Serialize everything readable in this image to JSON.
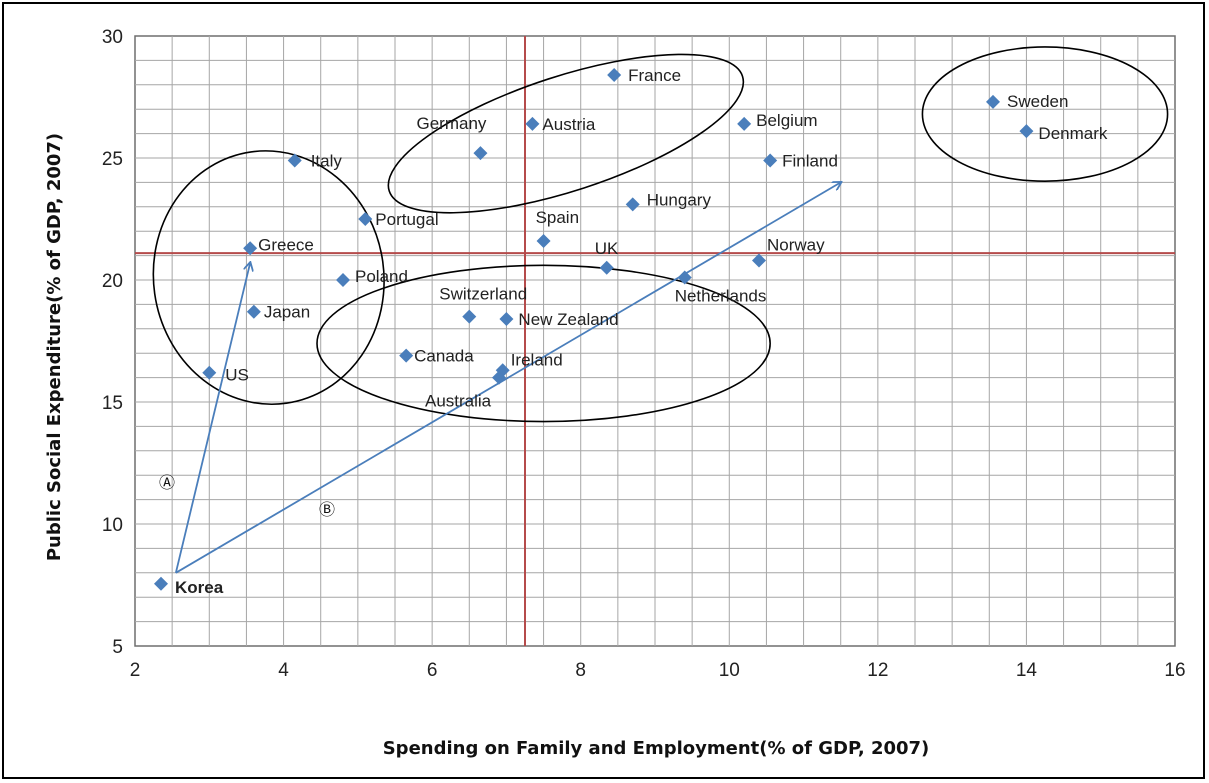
{
  "chart_data": {
    "type": "scatter",
    "xlabel": "Spending on Family and Employment(% of GDP, 2007)",
    "ylabel": "Public Social Expenditure(% of GDP, 2007)",
    "xlim": [
      2,
      16
    ],
    "ylim": [
      5,
      30
    ],
    "xticks": [
      "2",
      "4",
      "6",
      "8",
      "10",
      "12",
      "14",
      "16"
    ],
    "yticks": [
      "5",
      "10",
      "15",
      "20",
      "25",
      "30"
    ],
    "grid": true,
    "reference_lines": {
      "x": 7.25,
      "y": 21.1
    },
    "points": [
      {
        "label": "France",
        "x": 8.45,
        "y": 28.4
      },
      {
        "label": "Sweden",
        "x": 13.55,
        "y": 27.3
      },
      {
        "label": "Austria",
        "x": 7.35,
        "y": 26.4
      },
      {
        "label": "Belgium",
        "x": 10.2,
        "y": 26.4
      },
      {
        "label": "Denmark",
        "x": 14.0,
        "y": 26.1
      },
      {
        "label": "Germany",
        "x": 6.65,
        "y": 25.2
      },
      {
        "label": "Italy",
        "x": 4.15,
        "y": 24.9
      },
      {
        "label": "Finland",
        "x": 10.55,
        "y": 24.9
      },
      {
        "label": "Hungary",
        "x": 8.7,
        "y": 23.1
      },
      {
        "label": "Portugal",
        "x": 5.1,
        "y": 22.5
      },
      {
        "label": "Spain",
        "x": 7.5,
        "y": 21.6
      },
      {
        "label": "Greece",
        "x": 3.55,
        "y": 21.3
      },
      {
        "label": "Norway",
        "x": 10.4,
        "y": 20.8
      },
      {
        "label": "UK",
        "x": 8.35,
        "y": 20.5
      },
      {
        "label": "Netherlands",
        "x": 9.4,
        "y": 20.1
      },
      {
        "label": "Poland",
        "x": 4.8,
        "y": 20.0
      },
      {
        "label": "Japan",
        "x": 3.6,
        "y": 18.7
      },
      {
        "label": "Switzerland",
        "x": 6.5,
        "y": 18.5
      },
      {
        "label": "New Zealand",
        "x": 7.0,
        "y": 18.4
      },
      {
        "label": "Canada",
        "x": 5.65,
        "y": 16.9
      },
      {
        "label": "Ireland",
        "x": 6.95,
        "y": 16.3
      },
      {
        "label": "US",
        "x": 3.0,
        "y": 16.2
      },
      {
        "label": "Australia",
        "x": 6.9,
        "y": 16.0
      },
      {
        "label": "Korea",
        "x": 2.35,
        "y": 7.55
      }
    ],
    "annotations": {
      "A": "Ⓐ",
      "B": "Ⓑ"
    },
    "colors": {
      "marker": "#4a7ebb",
      "grid": "#a6a6a6",
      "reference_line": "#b54b4b",
      "arrow": "#4a7ebb",
      "ellipse": "#000000"
    }
  }
}
